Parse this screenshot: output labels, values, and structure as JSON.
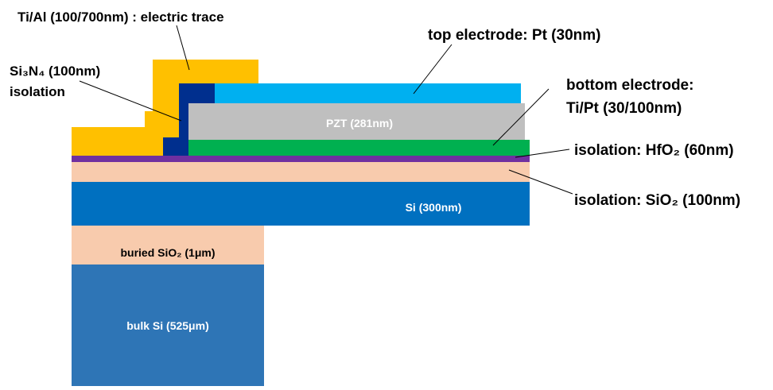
{
  "title": "Ti/Al (100/700nm) : electric trace",
  "labels": {
    "top_electrode": "top electrode: Pt (30nm)",
    "si3n4": [
      "Si₃N₄ (100nm)",
      "isolation"
    ],
    "bottom_electrode": [
      "bottom electrode:",
      "Ti/Pt (30/100nm)"
    ],
    "hfo2": "isolation: HfO₂ (60nm)",
    "sio2": "isolation: SiO₂ (100nm)"
  },
  "layers": {
    "pzt": "PZT (281nm)",
    "si": "Si (300nm)",
    "buried": "buried SiO₂ (1μm)",
    "bulk": "bulk Si (525μm)"
  }
}
